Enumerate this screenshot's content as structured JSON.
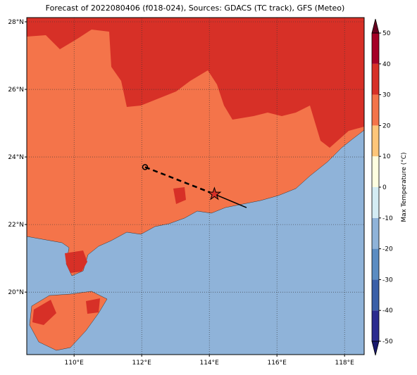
{
  "title": "Forecast of 2022080406 (f018-024), Sources: GDACS (TC track), GFS (Meteo)",
  "map": {
    "lon_range": [
      108.6,
      118.58
    ],
    "lat_range": [
      18.15,
      28.125
    ],
    "lon_ticks": [
      {
        "value": 110,
        "label": "110°E"
      },
      {
        "value": 112,
        "label": "112°E"
      },
      {
        "value": 114,
        "label": "114°E"
      },
      {
        "value": 116,
        "label": "116°E"
      },
      {
        "value": 118,
        "label": "118°E"
      }
    ],
    "lat_ticks": [
      {
        "value": 20,
        "label": "20°N"
      },
      {
        "value": 22,
        "label": "22°N"
      },
      {
        "value": 24,
        "label": "24°N"
      },
      {
        "value": 26,
        "label": "26°N"
      },
      {
        "value": 28,
        "label": "28°N"
      }
    ],
    "track": {
      "lon": [
        112.1,
        114.15,
        115.1
      ],
      "lat": [
        23.7,
        22.9,
        22.5
      ]
    }
  },
  "colorbar": {
    "label": "Max Temperature (°C)",
    "ticks": [
      -50,
      -40,
      -30,
      -20,
      -10,
      0,
      10,
      20,
      30,
      40,
      50
    ],
    "colors": [
      "#2b2b8f",
      "#3a5fa8",
      "#5b8cc2",
      "#8fb3d9",
      "#d4ecf4",
      "#fefee0",
      "#fdc67a",
      "#f4744a",
      "#d73027",
      "#a50026"
    ]
  }
}
